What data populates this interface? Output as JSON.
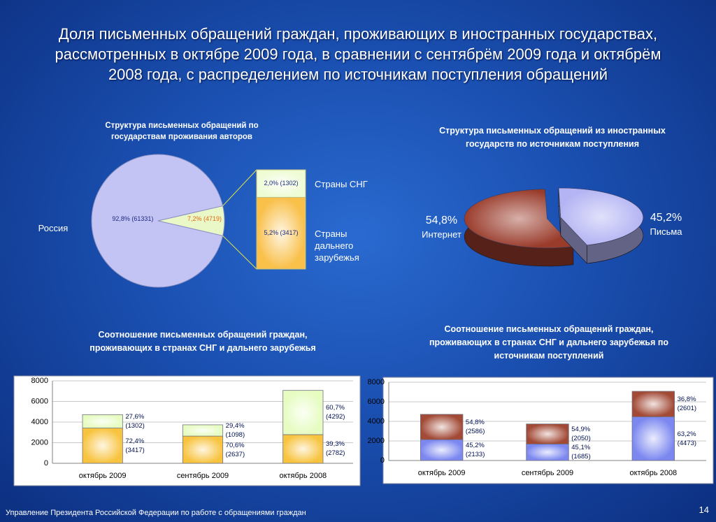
{
  "title": "Доля письменных обращений граждан, проживающих в иностранных государствах, рассмотренных в октябре 2009 года, в сравнении с сентябрём 2009 года и октябрём 2008 года, с распределением по источникам поступления обращений",
  "footer": "Управление Президента Российской Федерации по работе с обращениями граждан",
  "page_number": "14",
  "chart_data": [
    {
      "type": "pie-of-bar",
      "title": "Структура письменных обращений по государствам проживания авторов",
      "categories": [
        "Россия",
        null
      ],
      "values": [
        92.8,
        7.2
      ],
      "value_labels": [
        "92,8% (61331)",
        "7,2% (4719)"
      ],
      "colors": [
        "#c4c4f4",
        "#eaf8c8"
      ],
      "breakdown": {
        "categories": [
          "Страны СНГ",
          "Страны дальнего зарубежья"
        ],
        "values": [
          2.0,
          5.2
        ],
        "value_labels": [
          "2,0% (1302)",
          "5,2% (3417)"
        ],
        "colors": [
          "#eefcd4",
          "#f9c04a"
        ]
      }
    },
    {
      "type": "pie3d",
      "title": "Структура письменных обращений из иностранных государств по источникам поступления",
      "categories": [
        "Интернет",
        "Письма"
      ],
      "values": [
        54.8,
        45.2
      ],
      "value_labels": [
        "54,8%",
        "45,2%"
      ],
      "colors": [
        "#9a3c2c",
        "#b4b4f4"
      ]
    },
    {
      "type": "stacked-bar",
      "title": "Соотношение письменных обращений граждан, проживающих в странах СНГ и дальнего зарубежья",
      "categories": [
        "октябрь 2009",
        "сентябрь 2009",
        "октябрь 2008"
      ],
      "series": [
        {
          "color": "#f8c440",
          "values": [
            3417,
            2637,
            2782
          ],
          "value_labels": [
            "72,4% (3417)",
            "70,6% (2637)",
            "39,3% (2782)"
          ]
        },
        {
          "color": "#e6fcc0",
          "values": [
            1302,
            1098,
            4292
          ],
          "value_labels": [
            "27,6% (1302)",
            "29,4% (1098)",
            "60,7% (4292)"
          ]
        }
      ],
      "ylim": [
        0,
        8000
      ],
      "yticks": [
        0,
        2000,
        4000,
        6000,
        8000
      ],
      "grid": true
    },
    {
      "type": "stacked-bar",
      "title": "Соотношение письменных обращений граждан, проживающих в странах СНГ и дальнего зарубежья по источникам поступлений",
      "categories": [
        "октябрь 2009",
        "сентябрь 2009",
        "октябрь 2008"
      ],
      "series": [
        {
          "color": "#7c88f0",
          "values": [
            2133,
            1685,
            4473
          ],
          "value_labels": [
            "45,2% (2133)",
            "45,1% (1685)",
            "63,2% (4473)"
          ]
        },
        {
          "color": "#a24a36",
          "values": [
            2586,
            2050,
            2601
          ],
          "value_labels": [
            "54,8% (2586)",
            "54,9% (2050)",
            "36,8% (2601)"
          ]
        }
      ],
      "ylim": [
        0,
        8000
      ],
      "yticks": [
        0,
        2000,
        4000,
        6000,
        8000
      ],
      "grid": true
    }
  ]
}
